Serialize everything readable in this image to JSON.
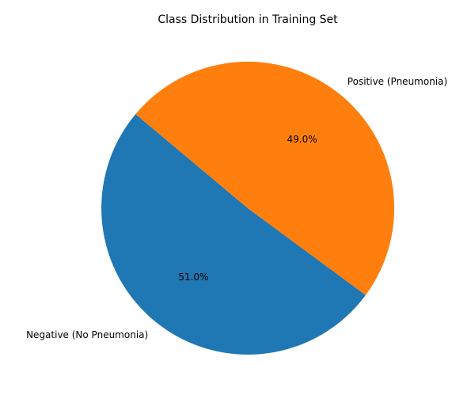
{
  "chart_data": {
    "type": "pie",
    "title": "Class Distribution in Training Set",
    "start_angle_deg": 140,
    "counterclockwise": true,
    "slices": [
      {
        "label": "Negative (No Pneumonia)",
        "value": 51.0,
        "pct_label": "51.0%",
        "color": "#1f77b4"
      },
      {
        "label": "Positive (Pneumonia)",
        "value": 49.0,
        "pct_label": "49.0%",
        "color": "#ff7f0e"
      }
    ]
  }
}
